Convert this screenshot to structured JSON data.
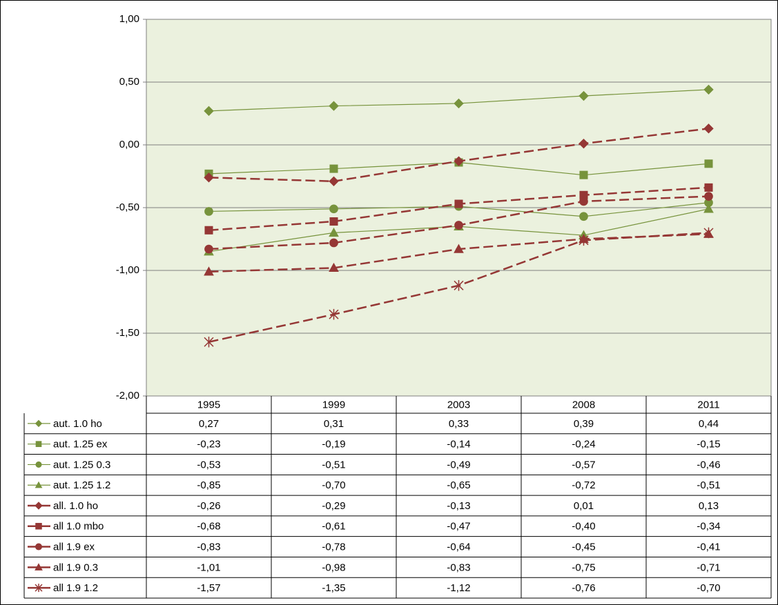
{
  "chart_data": {
    "type": "line",
    "categories": [
      "1995",
      "1999",
      "2003",
      "2008",
      "2011"
    ],
    "ylim": [
      -2,
      1
    ],
    "yticks": [
      {
        "value": -2,
        "label": "-2,00"
      },
      {
        "value": -1.5,
        "label": "-1,50"
      },
      {
        "value": -1,
        "label": "-1,00"
      },
      {
        "value": -0.5,
        "label": "-0,50"
      },
      {
        "value": 0,
        "label": "0,00"
      },
      {
        "value": 0.5,
        "label": "0,50"
      },
      {
        "value": 1,
        "label": "1,00"
      }
    ],
    "grid": true,
    "series": [
      {
        "name": "aut. 1.0 ho",
        "color": "#77933c",
        "marker": "diamond",
        "line_style": "solid",
        "values": [
          0.27,
          0.31,
          0.33,
          0.39,
          0.44
        ],
        "value_labels": [
          "0,27",
          "0,31",
          "0,33",
          "0,39",
          "0,44"
        ]
      },
      {
        "name": "aut. 1.25 ex",
        "color": "#77933c",
        "marker": "square",
        "line_style": "solid",
        "values": [
          -0.23,
          -0.19,
          -0.14,
          -0.24,
          -0.15
        ],
        "value_labels": [
          "-0,23",
          "-0,19",
          "-0,14",
          "-0,24",
          "-0,15"
        ]
      },
      {
        "name": "aut. 1.25 0.3",
        "color": "#77933c",
        "marker": "circle",
        "line_style": "solid",
        "values": [
          -0.53,
          -0.51,
          -0.49,
          -0.57,
          -0.46
        ],
        "value_labels": [
          "-0,53",
          "-0,51",
          "-0,49",
          "-0,57",
          "-0,46"
        ]
      },
      {
        "name": "aut. 1.25 1.2",
        "color": "#77933c",
        "marker": "triangle",
        "line_style": "solid",
        "values": [
          -0.85,
          -0.7,
          -0.65,
          -0.72,
          -0.51
        ],
        "value_labels": [
          "-0,85",
          "-0,70",
          "-0,65",
          "-0,72",
          "-0,51"
        ]
      },
      {
        "name": "all. 1.0 ho",
        "color": "#953735",
        "marker": "diamond",
        "line_style": "dashed",
        "values": [
          -0.26,
          -0.29,
          -0.13,
          0.01,
          0.13
        ],
        "value_labels": [
          "-0,26",
          "-0,29",
          "-0,13",
          "0,01",
          "0,13"
        ]
      },
      {
        "name": "all 1.0 mbo",
        "color": "#953735",
        "marker": "square",
        "line_style": "dashed",
        "values": [
          -0.68,
          -0.61,
          -0.47,
          -0.4,
          -0.34
        ],
        "value_labels": [
          "-0,68",
          "-0,61",
          "-0,47",
          "-0,40",
          "-0,34"
        ]
      },
      {
        "name": "all 1.9 ex",
        "color": "#953735",
        "marker": "circle",
        "line_style": "dashed",
        "values": [
          -0.83,
          -0.78,
          -0.64,
          -0.45,
          -0.41
        ],
        "value_labels": [
          "-0,83",
          "-0,78",
          "-0,64",
          "-0,45",
          "-0,41"
        ]
      },
      {
        "name": "all 1.9 0.3",
        "color": "#953735",
        "marker": "triangle",
        "line_style": "dashed",
        "values": [
          -1.01,
          -0.98,
          -0.83,
          -0.75,
          -0.71
        ],
        "value_labels": [
          "-1,01",
          "-0,98",
          "-0,83",
          "-0,75",
          "-0,71"
        ]
      },
      {
        "name": "all 1.9 1.2",
        "color": "#953735",
        "marker": "star",
        "line_style": "dashed",
        "values": [
          -1.57,
          -1.35,
          -1.12,
          -0.76,
          -0.7
        ],
        "value_labels": [
          "-1,57",
          "-1,35",
          "-1,12",
          "-0,76",
          "-0,70"
        ]
      }
    ]
  }
}
